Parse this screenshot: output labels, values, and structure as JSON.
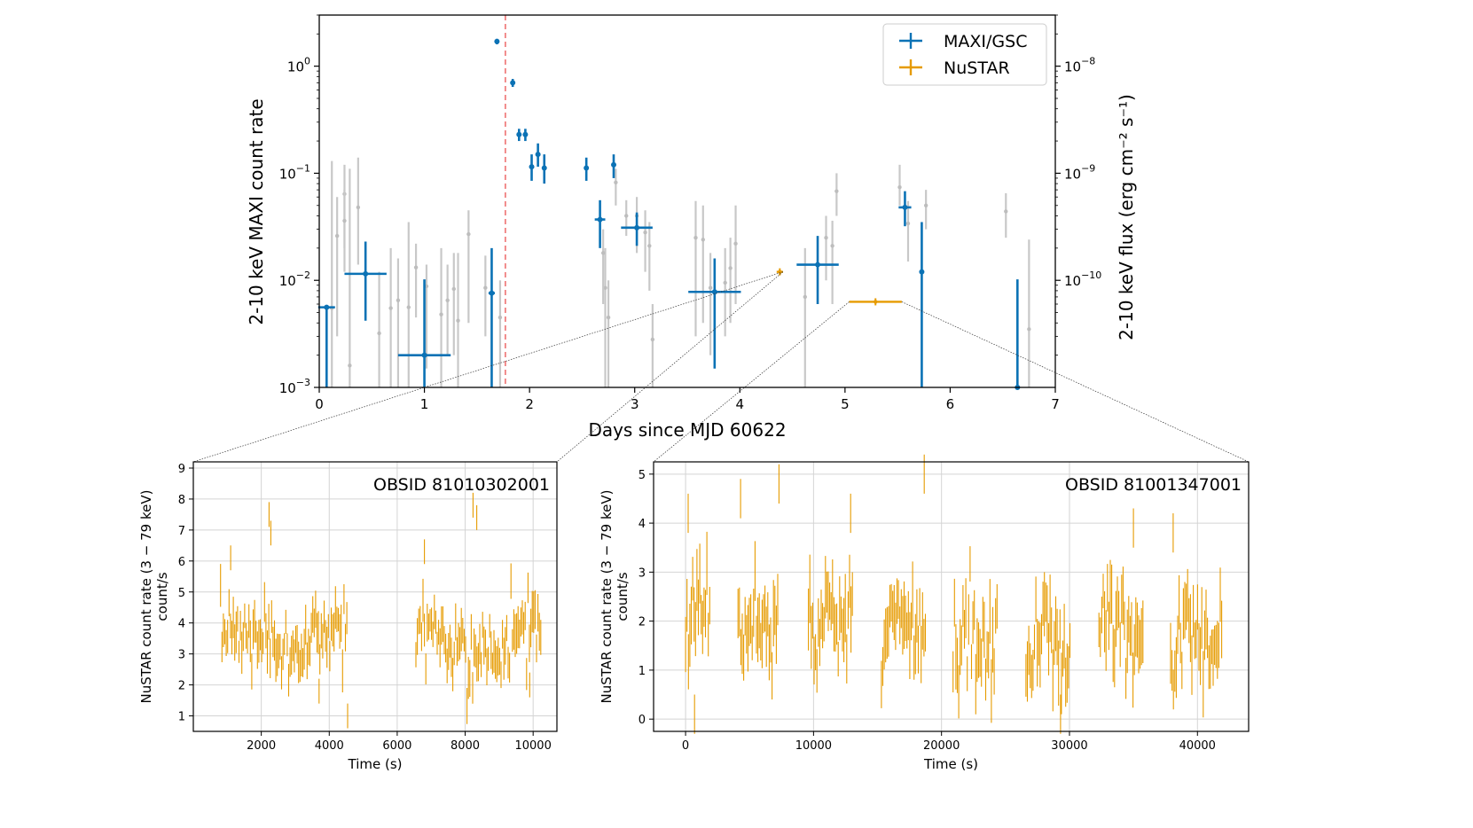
{
  "colors": {
    "maxi": "#0b72b5",
    "nustar": "#e69b00",
    "gray": "#c8c8c8",
    "peak_line": "#f08080",
    "grid": "#d4d4d4"
  },
  "chart_data": [
    {
      "id": "main",
      "type": "scatter",
      "xlabel": "Days since MJD 60622",
      "ylabel": "2-10 keV MAXI count rate",
      "y2label": "2-10 keV flux (erg cm⁻² s⁻¹)",
      "xlim": [
        0,
        7
      ],
      "ylim": [
        0.001,
        3
      ],
      "yscale": "log",
      "xticks": [
        "0",
        "1",
        "2",
        "3",
        "4",
        "5",
        "6",
        "7"
      ],
      "yticks": [
        {
          "v": 0.001,
          "b": "10",
          "e": "−3"
        },
        {
          "v": 0.01,
          "b": "10",
          "e": "−2"
        },
        {
          "v": 0.1,
          "b": "10",
          "e": "−1"
        },
        {
          "v": 1,
          "b": "10",
          "e": "0"
        }
      ],
      "y2ticks": [
        {
          "v": 1e-10,
          "b": "10",
          "e": "−10"
        },
        {
          "v": 1e-09,
          "b": "10",
          "e": "−9"
        },
        {
          "v": 1e-08,
          "b": "10",
          "e": "−8"
        }
      ],
      "flux_per_rate": 1e-08,
      "peak_marker_x": 1.77,
      "legend": {
        "position": "top-right",
        "entries": [
          "MAXI/GSC",
          "NuSTAR"
        ]
      },
      "series": [
        {
          "name": "MAXI/GSC",
          "points": [
            {
              "x": 0.07,
              "xerr": 0.08,
              "y": 0.0056,
              "ylo": 0.001,
              "yhi": 0.0056
            },
            {
              "x": 0.44,
              "xerr": 0.2,
              "y": 0.0115,
              "ylo": 0.0042,
              "yhi": 0.023
            },
            {
              "x": 1.0,
              "xerr": 0.25,
              "y": 0.002,
              "ylo": 0.001,
              "yhi": 0.0102
            },
            {
              "x": 1.64,
              "xerr": 0.03,
              "y": 0.0076,
              "ylo": 0.001,
              "yhi": 0.02
            },
            {
              "x": 1.69,
              "xerr": 0.0,
              "y": 1.7,
              "ylo": 1.6,
              "yhi": 1.8
            },
            {
              "x": 1.84,
              "xerr": 0.0,
              "y": 0.7,
              "ylo": 0.64,
              "yhi": 0.76
            },
            {
              "x": 1.9,
              "xerr": 0.0,
              "y": 0.23,
              "ylo": 0.2,
              "yhi": 0.26
            },
            {
              "x": 1.96,
              "xerr": 0.0,
              "y": 0.23,
              "ylo": 0.2,
              "yhi": 0.26
            },
            {
              "x": 2.02,
              "xerr": 0.0,
              "y": 0.115,
              "ylo": 0.085,
              "yhi": 0.15
            },
            {
              "x": 2.08,
              "xerr": 0.0,
              "y": 0.15,
              "ylo": 0.115,
              "yhi": 0.19
            },
            {
              "x": 2.14,
              "xerr": 0.0,
              "y": 0.112,
              "ylo": 0.08,
              "yhi": 0.15
            },
            {
              "x": 2.54,
              "xerr": 0.0,
              "y": 0.112,
              "ylo": 0.085,
              "yhi": 0.14
            },
            {
              "x": 2.67,
              "xerr": 0.05,
              "y": 0.037,
              "ylo": 0.02,
              "yhi": 0.056
            },
            {
              "x": 2.8,
              "xerr": 0.0,
              "y": 0.12,
              "ylo": 0.09,
              "yhi": 0.15
            },
            {
              "x": 3.02,
              "xerr": 0.15,
              "y": 0.031,
              "ylo": 0.021,
              "yhi": 0.043
            },
            {
              "x": 3.76,
              "xerr": 0.25,
              "y": 0.0078,
              "ylo": 0.0015,
              "yhi": 0.016
            },
            {
              "x": 4.74,
              "xerr": 0.2,
              "y": 0.014,
              "ylo": 0.006,
              "yhi": 0.026
            },
            {
              "x": 5.57,
              "xerr": 0.06,
              "y": 0.048,
              "ylo": 0.032,
              "yhi": 0.068
            },
            {
              "x": 5.73,
              "xerr": 0.0,
              "y": 0.012,
              "ylo": 0.001,
              "yhi": 0.035
            },
            {
              "x": 6.64,
              "xerr": 0.0,
              "y": 0.001,
              "ylo": 0.001,
              "yhi": 0.0102
            }
          ]
        },
        {
          "name": "NuSTAR",
          "points": [
            {
              "x": 4.38,
              "xerr": 0.03,
              "flux": 1.2e-10
            },
            {
              "x": 5.29,
              "xerr": 0.25,
              "flux": 6.3e-11
            }
          ]
        },
        {
          "name": "MAXI orbits (gray)",
          "points": [
            {
              "x": 0.12,
              "y": 0.0055,
              "ylo": 0.001,
              "yhi": 0.13
            },
            {
              "x": 0.17,
              "y": 0.026,
              "ylo": 0.003,
              "yhi": 0.06
            },
            {
              "x": 0.24,
              "y": 0.064,
              "ylo": 0.02,
              "yhi": 0.12
            },
            {
              "x": 0.24,
              "y": 0.036,
              "ylo": 0.012,
              "yhi": 0.07
            },
            {
              "x": 0.29,
              "y": 0.0016,
              "ylo": 0.001,
              "yhi": 0.11
            },
            {
              "x": 0.37,
              "y": 0.048,
              "ylo": 0.014,
              "yhi": 0.14
            },
            {
              "x": 0.57,
              "y": 0.0032,
              "ylo": 0.001,
              "yhi": 0.012
            },
            {
              "x": 0.68,
              "y": 0.0055,
              "ylo": 0.001,
              "yhi": 0.02
            },
            {
              "x": 0.75,
              "y": 0.0065,
              "ylo": 0.001,
              "yhi": 0.016
            },
            {
              "x": 0.85,
              "y": 0.0056,
              "ylo": 0.001,
              "yhi": 0.035
            },
            {
              "x": 0.92,
              "y": 0.0132,
              "ylo": 0.0045,
              "yhi": 0.022
            },
            {
              "x": 1.02,
              "y": 0.0088,
              "ylo": 0.0015,
              "yhi": 0.014
            },
            {
              "x": 1.16,
              "y": 0.0048,
              "ylo": 0.001,
              "yhi": 0.02
            },
            {
              "x": 1.22,
              "y": 0.0065,
              "ylo": 0.002,
              "yhi": 0.014
            },
            {
              "x": 1.28,
              "y": 0.0083,
              "ylo": 0.002,
              "yhi": 0.018
            },
            {
              "x": 1.32,
              "y": 0.0042,
              "ylo": 0.001,
              "yhi": 0.018
            },
            {
              "x": 1.42,
              "y": 0.027,
              "ylo": 0.004,
              "yhi": 0.045
            },
            {
              "x": 1.58,
              "y": 0.0085,
              "ylo": 0.003,
              "yhi": 0.017
            },
            {
              "x": 1.72,
              "y": 0.0045,
              "ylo": 0.001,
              "yhi": 0.01
            },
            {
              "x": 2.82,
              "y": 0.082,
              "ylo": 0.05,
              "yhi": 0.11
            },
            {
              "x": 2.72,
              "y": 0.0085,
              "ylo": 0.001,
              "yhi": 0.02
            },
            {
              "x": 2.7,
              "y": 0.018,
              "ylo": 0.006,
              "yhi": 0.03
            },
            {
              "x": 2.75,
              "y": 0.0045,
              "ylo": 0.001,
              "yhi": 0.01
            },
            {
              "x": 2.92,
              "y": 0.04,
              "ylo": 0.026,
              "yhi": 0.056
            },
            {
              "x": 3.02,
              "y": 0.04,
              "ylo": 0.018,
              "yhi": 0.06
            },
            {
              "x": 3.1,
              "y": 0.028,
              "ylo": 0.012,
              "yhi": 0.045
            },
            {
              "x": 3.14,
              "y": 0.021,
              "ylo": 0.008,
              "yhi": 0.035
            },
            {
              "x": 3.17,
              "y": 0.0028,
              "ylo": 0.001,
              "yhi": 0.006
            },
            {
              "x": 3.58,
              "y": 0.025,
              "ylo": 0.003,
              "yhi": 0.055
            },
            {
              "x": 3.65,
              "y": 0.024,
              "ylo": 0.004,
              "yhi": 0.05
            },
            {
              "x": 3.72,
              "y": 0.0085,
              "ylo": 0.002,
              "yhi": 0.018
            },
            {
              "x": 3.86,
              "y": 0.0095,
              "ylo": 0.003,
              "yhi": 0.02
            },
            {
              "x": 3.91,
              "y": 0.013,
              "ylo": 0.004,
              "yhi": 0.025
            },
            {
              "x": 3.96,
              "y": 0.022,
              "ylo": 0.006,
              "yhi": 0.05
            },
            {
              "x": 4.62,
              "y": 0.007,
              "ylo": 0.001,
              "yhi": 0.02
            },
            {
              "x": 4.82,
              "y": 0.025,
              "ylo": 0.01,
              "yhi": 0.04
            },
            {
              "x": 4.88,
              "y": 0.021,
              "ylo": 0.006,
              "yhi": 0.036
            },
            {
              "x": 4.92,
              "y": 0.068,
              "ylo": 0.04,
              "yhi": 0.1
            },
            {
              "x": 5.52,
              "y": 0.074,
              "ylo": 0.05,
              "yhi": 0.12
            },
            {
              "x": 5.6,
              "y": 0.034,
              "ylo": 0.015,
              "yhi": 0.055
            },
            {
              "x": 5.77,
              "y": 0.05,
              "ylo": 0.03,
              "yhi": 0.07
            },
            {
              "x": 6.53,
              "y": 0.044,
              "ylo": 0.025,
              "yhi": 0.065
            },
            {
              "x": 6.75,
              "y": 0.0035,
              "ylo": 0.001,
              "yhi": 0.024
            }
          ]
        }
      ]
    },
    {
      "id": "nustar1",
      "type": "line",
      "title": "OBSID 81010302001",
      "xlabel": "Time (s)",
      "ylabel": "NuSTAR count rate (3 − 79 keV)",
      "ylabel2": "count/s",
      "xlim": [
        0,
        10700
      ],
      "ylim": [
        0.5,
        9.2
      ],
      "xticks": [
        2000,
        4000,
        6000,
        8000,
        10000
      ],
      "yticks": [
        1,
        2,
        3,
        4,
        5,
        6,
        7,
        8,
        9
      ],
      "segments": [
        [
          800,
          4550,
          3.4
        ],
        [
          6550,
          10250,
          3.4
        ]
      ],
      "scatter_sigma": 0.7,
      "spikes": [
        {
          "x": 1100,
          "y": 6.1
        },
        {
          "x": 2230,
          "y": 7.5
        },
        {
          "x": 2280,
          "y": 6.9
        },
        {
          "x": 4540,
          "y": 1.0
        },
        {
          "x": 6800,
          "y": 6.3
        },
        {
          "x": 8230,
          "y": 7.8
        },
        {
          "x": 8340,
          "y": 7.4
        },
        {
          "x": 3700,
          "y": 1.8
        },
        {
          "x": 9900,
          "y": 2.0
        }
      ]
    },
    {
      "id": "nustar2",
      "type": "line",
      "title": "OBSID 81001347001",
      "xlabel": "Time (s)",
      "ylabel": "NuSTAR count rate (3 − 79 keV)",
      "ylabel2": "count/s",
      "xlim": [
        -2500,
        44000
      ],
      "ylim": [
        -0.25,
        5.25
      ],
      "xticks": [
        0,
        10000,
        20000,
        30000,
        40000
      ],
      "yticks": [
        0,
        1,
        2,
        3,
        4,
        5
      ],
      "segments": [
        [
          0,
          1900,
          2.3
        ],
        [
          4100,
          7300,
          2.0
        ],
        [
          9600,
          13100,
          2.0
        ],
        [
          15300,
          18800,
          1.9
        ],
        [
          20900,
          24400,
          1.6
        ],
        [
          26600,
          30100,
          1.5
        ],
        [
          32300,
          35800,
          2.0
        ],
        [
          37900,
          41900,
          1.6
        ]
      ],
      "scatter_sigma": 0.55,
      "spikes": [
        {
          "x": 200,
          "y": 4.2
        },
        {
          "x": 700,
          "y": 0.1
        },
        {
          "x": 4300,
          "y": 4.5
        },
        {
          "x": 7300,
          "y": 4.8
        },
        {
          "x": 12900,
          "y": 4.2
        },
        {
          "x": 18650,
          "y": 5.0
        },
        {
          "x": 29300,
          "y": 0.1
        },
        {
          "x": 38100,
          "y": 3.8
        },
        {
          "x": 35000,
          "y": 3.9
        }
      ]
    }
  ]
}
